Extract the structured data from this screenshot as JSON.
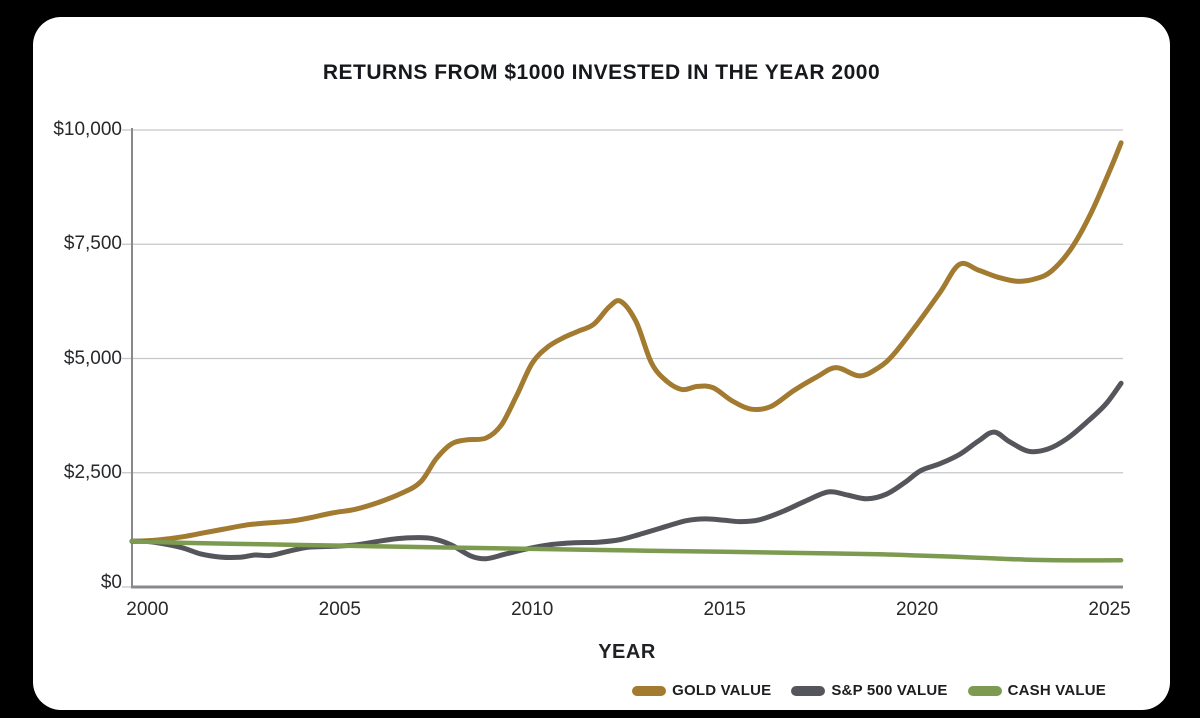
{
  "title": "RETURNS FROM $1000 INVESTED IN THE YEAR 2000",
  "chart_data": {
    "type": "line",
    "title": "RETURNS FROM $1000 INVESTED IN THE YEAR 2000",
    "xlabel": "YEAR",
    "ylabel": "",
    "xlim": [
      1999.6,
      2025.35
    ],
    "ylim": [
      0,
      10000
    ],
    "grid": "horizontal",
    "legend_position": "bottom-right",
    "x_ticks": [
      {
        "label": "2000",
        "value": 2000
      },
      {
        "label": "2005",
        "value": 2005
      },
      {
        "label": "2010",
        "value": 2010
      },
      {
        "label": "2015",
        "value": 2015
      },
      {
        "label": "2020",
        "value": 2020
      },
      {
        "label": "2025",
        "value": 2025
      }
    ],
    "y_ticks": [
      {
        "label": "$0",
        "value": 0
      },
      {
        "label": "$2,500",
        "value": 2500
      },
      {
        "label": "$5,000",
        "value": 5000
      },
      {
        "label": "$7,500",
        "value": 7500
      },
      {
        "label": "$10,000",
        "value": 10000
      }
    ],
    "series": [
      {
        "name": "GOLD VALUE",
        "color": "#a27a30",
        "stroke_width": 5,
        "points": [
          [
            1999.6,
            1000
          ],
          [
            2000,
            1010
          ],
          [
            2000.5,
            1050
          ],
          [
            2001,
            1110
          ],
          [
            2001.5,
            1190
          ],
          [
            2002,
            1270
          ],
          [
            2002.6,
            1360
          ],
          [
            2003.1,
            1400
          ],
          [
            2003.7,
            1440
          ],
          [
            2004.2,
            1510
          ],
          [
            2004.8,
            1620
          ],
          [
            2005.4,
            1700
          ],
          [
            2006,
            1850
          ],
          [
            2006.6,
            2050
          ],
          [
            2007.1,
            2300
          ],
          [
            2007.5,
            2800
          ],
          [
            2007.9,
            3130
          ],
          [
            2008.3,
            3220
          ],
          [
            2008.8,
            3260
          ],
          [
            2009.2,
            3550
          ],
          [
            2009.6,
            4200
          ],
          [
            2010,
            4900
          ],
          [
            2010.4,
            5250
          ],
          [
            2010.8,
            5450
          ],
          [
            2011.2,
            5600
          ],
          [
            2011.6,
            5750
          ],
          [
            2012,
            6130
          ],
          [
            2012.3,
            6250
          ],
          [
            2012.7,
            5800
          ],
          [
            2013.1,
            4900
          ],
          [
            2013.5,
            4500
          ],
          [
            2013.9,
            4320
          ],
          [
            2014.3,
            4390
          ],
          [
            2014.7,
            4360
          ],
          [
            2015.2,
            4070
          ],
          [
            2015.7,
            3890
          ],
          [
            2016.2,
            3950
          ],
          [
            2016.8,
            4300
          ],
          [
            2017.4,
            4600
          ],
          [
            2017.9,
            4800
          ],
          [
            2018.5,
            4620
          ],
          [
            2019,
            4800
          ],
          [
            2019.4,
            5100
          ],
          [
            2020,
            5750
          ],
          [
            2020.6,
            6450
          ],
          [
            2021.1,
            7060
          ],
          [
            2021.6,
            6930
          ],
          [
            2022.1,
            6780
          ],
          [
            2022.6,
            6690
          ],
          [
            2023.1,
            6750
          ],
          [
            2023.5,
            6920
          ],
          [
            2024,
            7400
          ],
          [
            2024.5,
            8150
          ],
          [
            2025,
            9100
          ],
          [
            2025.3,
            9720
          ]
        ]
      },
      {
        "name": "S&P 500 VALUE",
        "color": "#54565b",
        "stroke_width": 5,
        "points": [
          [
            1999.6,
            1000
          ],
          [
            2000,
            995
          ],
          [
            2000.4,
            950
          ],
          [
            2000.9,
            860
          ],
          [
            2001.4,
            720
          ],
          [
            2001.9,
            655
          ],
          [
            2002.4,
            650
          ],
          [
            2002.8,
            700
          ],
          [
            2003.2,
            690
          ],
          [
            2003.7,
            790
          ],
          [
            2004.2,
            870
          ],
          [
            2004.8,
            890
          ],
          [
            2005.4,
            920
          ],
          [
            2006,
            1000
          ],
          [
            2006.5,
            1060
          ],
          [
            2007,
            1080
          ],
          [
            2007.4,
            1060
          ],
          [
            2007.9,
            920
          ],
          [
            2008.4,
            680
          ],
          [
            2008.8,
            620
          ],
          [
            2009.3,
            720
          ],
          [
            2009.9,
            840
          ],
          [
            2010.5,
            930
          ],
          [
            2011.1,
            970
          ],
          [
            2011.7,
            980
          ],
          [
            2012.3,
            1040
          ],
          [
            2012.9,
            1180
          ],
          [
            2013.5,
            1330
          ],
          [
            2014,
            1450
          ],
          [
            2014.5,
            1490
          ],
          [
            2015,
            1460
          ],
          [
            2015.4,
            1430
          ],
          [
            2015.9,
            1470
          ],
          [
            2016.5,
            1650
          ],
          [
            2017.1,
            1880
          ],
          [
            2017.7,
            2080
          ],
          [
            2018.2,
            2010
          ],
          [
            2018.7,
            1930
          ],
          [
            2019.2,
            2030
          ],
          [
            2019.7,
            2300
          ],
          [
            2020.1,
            2550
          ],
          [
            2020.6,
            2700
          ],
          [
            2021.1,
            2900
          ],
          [
            2021.6,
            3200
          ],
          [
            2022,
            3390
          ],
          [
            2022.4,
            3180
          ],
          [
            2022.9,
            2970
          ],
          [
            2023.4,
            3020
          ],
          [
            2023.9,
            3250
          ],
          [
            2024.4,
            3600
          ],
          [
            2024.9,
            4000
          ],
          [
            2025.3,
            4460
          ]
        ]
      },
      {
        "name": "CASH VALUE",
        "color": "#7d9b50",
        "stroke_width": 4.5,
        "points": [
          [
            1999.6,
            1000
          ],
          [
            2001,
            965
          ],
          [
            2003,
            935
          ],
          [
            2005,
            905
          ],
          [
            2007,
            875
          ],
          [
            2009,
            850
          ],
          [
            2011,
            820
          ],
          [
            2013,
            795
          ],
          [
            2015,
            770
          ],
          [
            2017,
            745
          ],
          [
            2019,
            715
          ],
          [
            2020,
            690
          ],
          [
            2021,
            660
          ],
          [
            2022,
            625
          ],
          [
            2022.8,
            600
          ],
          [
            2023.6,
            585
          ],
          [
            2024.5,
            582
          ],
          [
            2025.3,
            585
          ]
        ]
      }
    ],
    "style": {
      "gridline_color": "#c6c7c9",
      "axis_color": "#88898c",
      "tick_label_color": "#26282b",
      "background": "#ffffff",
      "page_background": "#000000"
    }
  }
}
